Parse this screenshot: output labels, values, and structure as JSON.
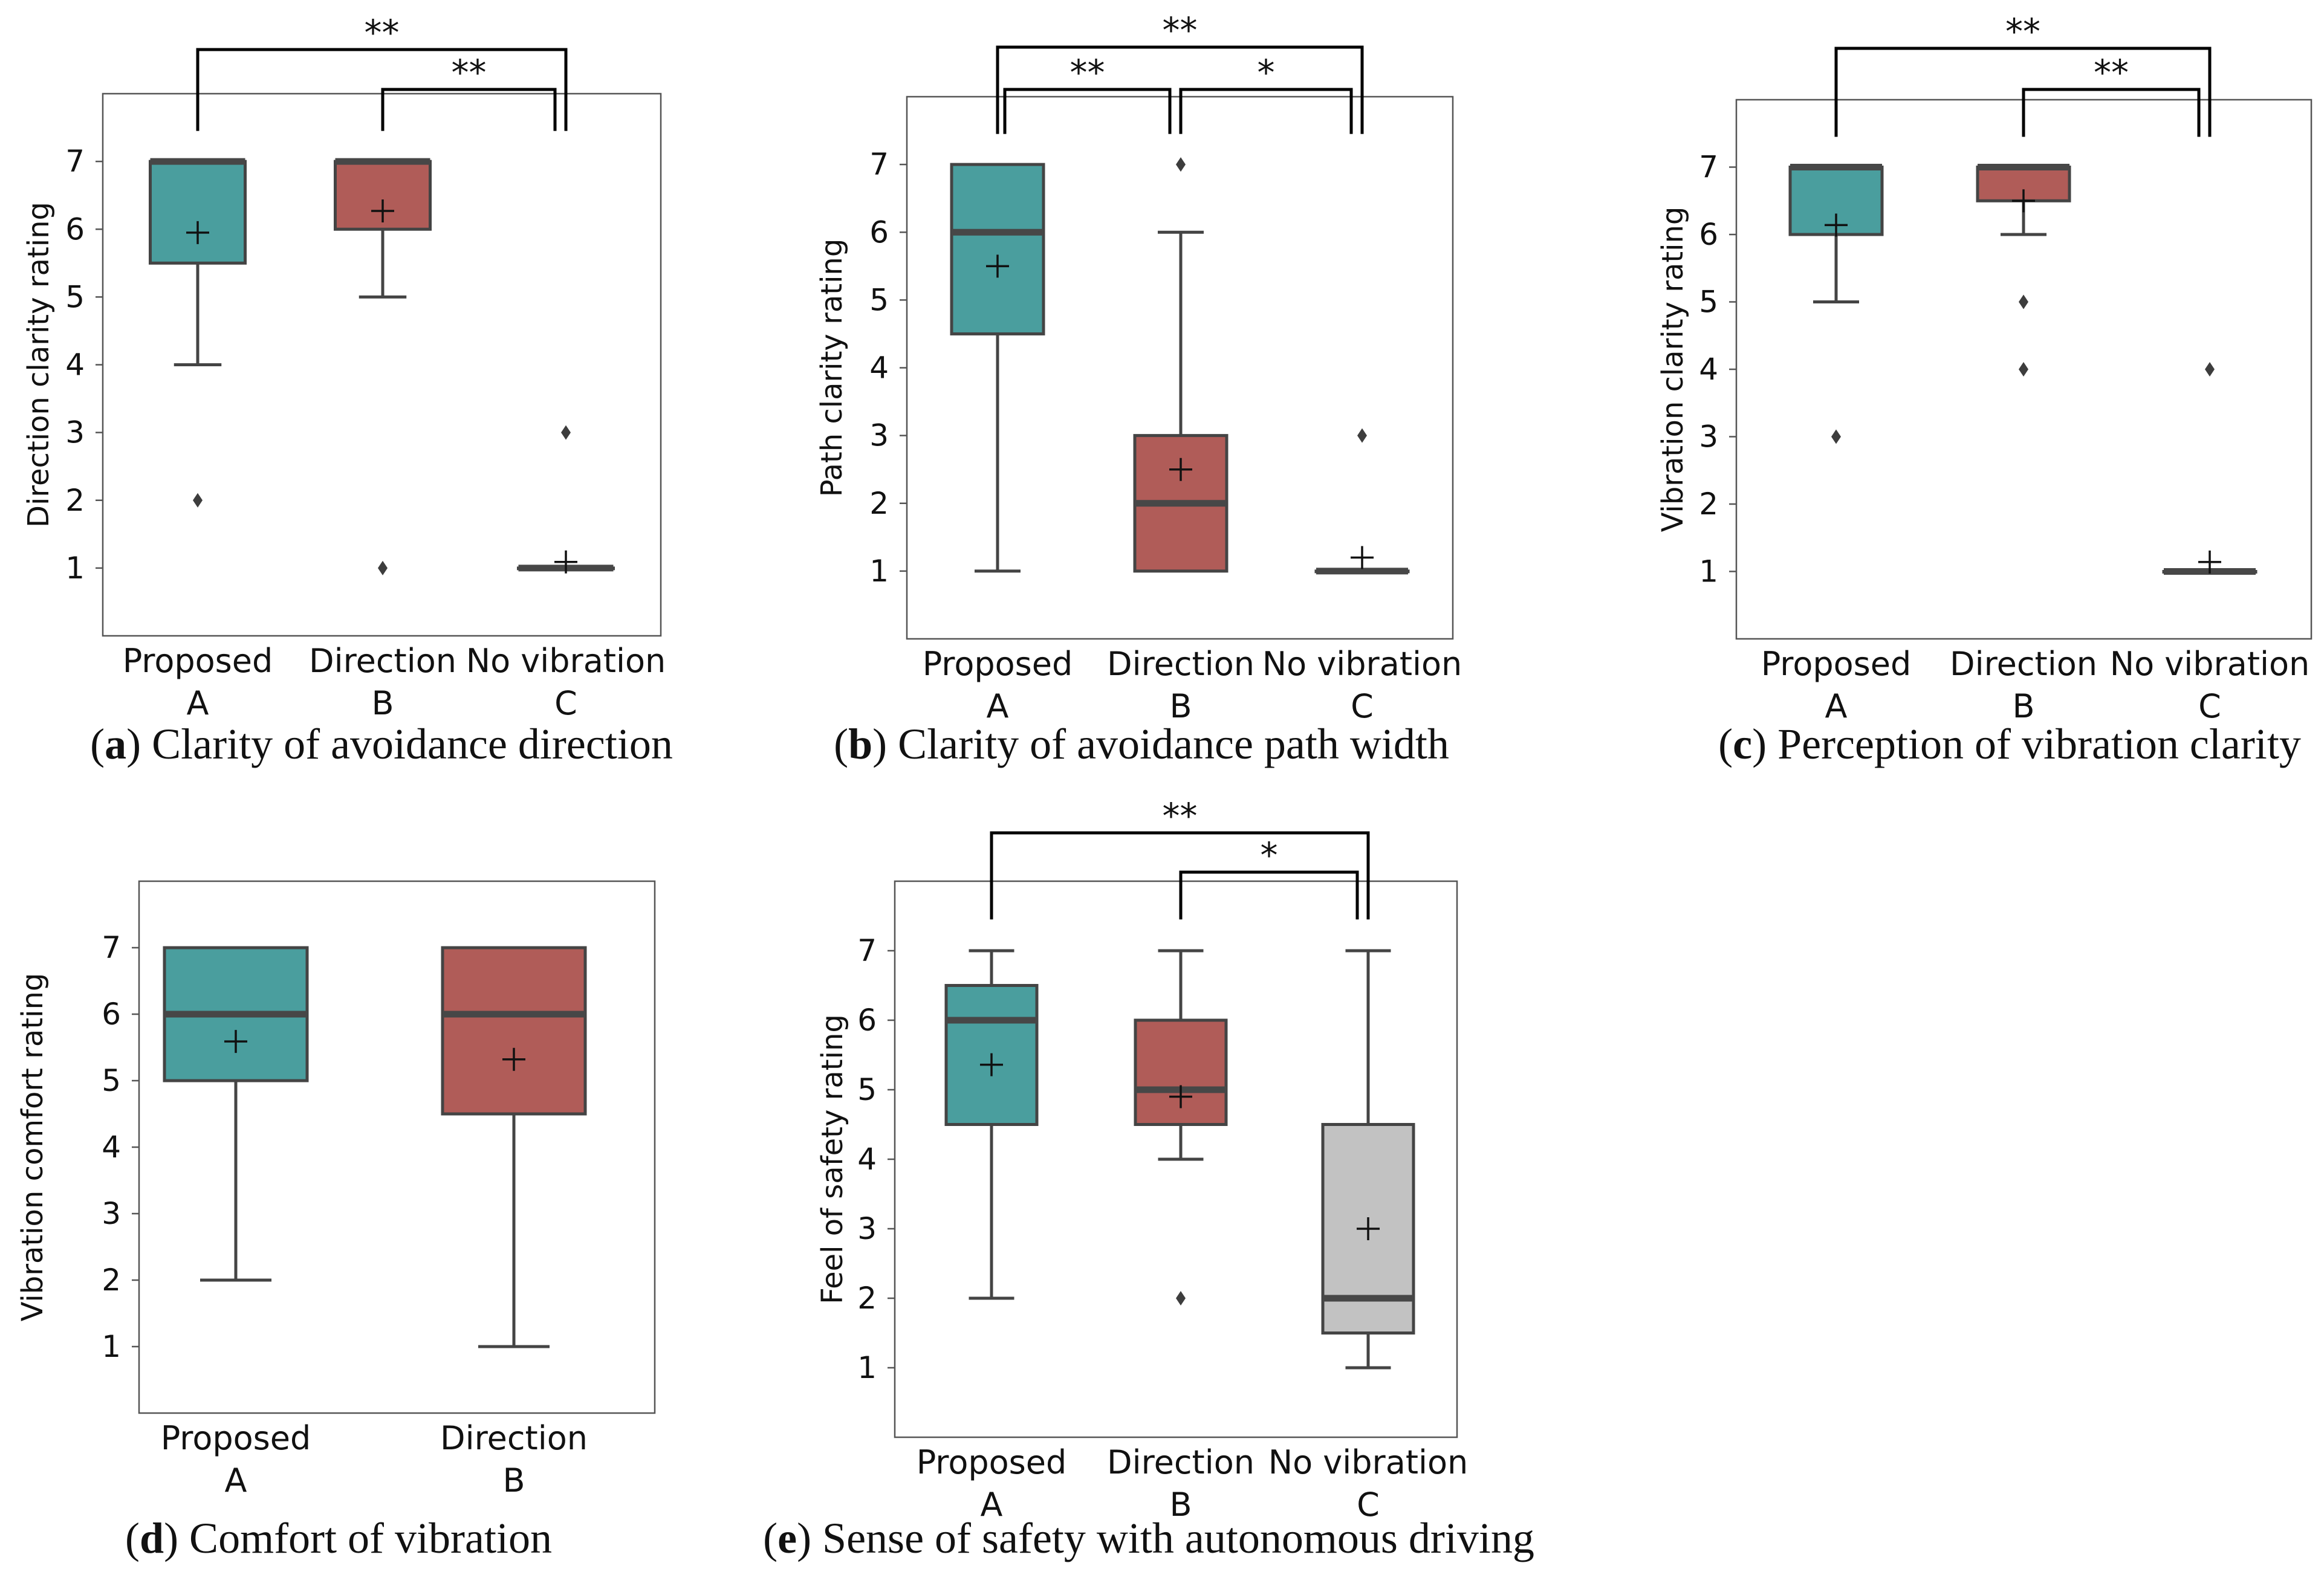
{
  "figure": {
    "colors": {
      "A": "#4a9e9e",
      "B": "#b05c58",
      "C": "#c2c2c2",
      "line": "#444444",
      "median": "#474747",
      "frame": "#555555",
      "text": "#111111",
      "bracket": "#000000"
    },
    "markers": {
      "mean": "+",
      "outlier": "diamond"
    }
  },
  "chart_data": [
    {
      "id": "a",
      "type": "box",
      "caption_letter": "a",
      "caption_open": "(",
      "caption_close": ")",
      "caption_text": "Clarity of avoidance direction",
      "ylabel": "Direction clarity rating",
      "ylim": [
        0,
        8
      ],
      "yticks": [
        "1",
        "2",
        "3",
        "4",
        "5",
        "6",
        "7"
      ],
      "groups": [
        {
          "key": "A",
          "name": "Proposed",
          "letter": "A",
          "q1": 5.5,
          "median": 7,
          "q3": 7,
          "whisker_low": 4,
          "whisker_high": 7,
          "mean": 5.95,
          "outliers": [
            2
          ]
        },
        {
          "key": "B",
          "name": "Direction",
          "letter": "B",
          "q1": 6,
          "median": 7,
          "q3": 7,
          "whisker_low": 5,
          "whisker_high": 7,
          "mean": 6.27,
          "outliers": [
            1
          ]
        },
        {
          "key": "C",
          "name": "No vibration",
          "letter": "C",
          "q1": 1,
          "median": 1,
          "q3": 1,
          "whisker_low": 1,
          "whisker_high": 1,
          "mean": 1.09,
          "outliers": [
            3
          ]
        }
      ],
      "significance": [
        {
          "from": 0,
          "to": 2,
          "label": "**",
          "level": 2
        },
        {
          "from": 1,
          "to": 2,
          "label": "**",
          "level": 1
        }
      ]
    },
    {
      "id": "b",
      "type": "box",
      "caption_letter": "b",
      "caption_open": "(",
      "caption_close": ")",
      "caption_text": "Clarity of avoidance path width",
      "ylabel": "Path clarity rating",
      "ylim": [
        0,
        8
      ],
      "yticks": [
        "1",
        "2",
        "3",
        "4",
        "5",
        "6",
        "7"
      ],
      "groups": [
        {
          "key": "A",
          "name": "Proposed",
          "letter": "A",
          "q1": 4.5,
          "median": 6,
          "q3": 7,
          "whisker_low": 1,
          "whisker_high": 7,
          "mean": 5.5,
          "outliers": []
        },
        {
          "key": "B",
          "name": "Direction",
          "letter": "B",
          "q1": 1,
          "median": 2,
          "q3": 3,
          "whisker_low": 1,
          "whisker_high": 6,
          "mean": 2.5,
          "outliers": [
            7
          ]
        },
        {
          "key": "C",
          "name": "No vibration",
          "letter": "C",
          "q1": 1,
          "median": 1,
          "q3": 1,
          "whisker_low": 1,
          "whisker_high": 1,
          "mean": 1.2,
          "outliers": [
            3
          ]
        }
      ],
      "significance": [
        {
          "from": 0,
          "to": 2,
          "label": "**",
          "level": 2
        },
        {
          "from": 0,
          "to": 1,
          "label": "**",
          "level": 1
        },
        {
          "from": 1,
          "to": 2,
          "label": "*",
          "level": 1
        }
      ]
    },
    {
      "id": "c",
      "type": "box",
      "caption_letter": "c",
      "caption_open": "(",
      "caption_close": ")",
      "caption_text": "Perception of vibration clarity",
      "ylabel": "Vibration clarity rating",
      "ylim": [
        0,
        8
      ],
      "yticks": [
        "1",
        "2",
        "3",
        "4",
        "5",
        "6",
        "7"
      ],
      "groups": [
        {
          "key": "A",
          "name": "Proposed",
          "letter": "A",
          "q1": 6,
          "median": 7,
          "q3": 7,
          "whisker_low": 5,
          "whisker_high": 7,
          "mean": 6.14,
          "outliers": [
            3
          ]
        },
        {
          "key": "B",
          "name": "Direction",
          "letter": "B",
          "q1": 6.5,
          "median": 7,
          "q3": 7,
          "whisker_low": 6,
          "whisker_high": 7,
          "mean": 6.5,
          "outliers": [
            5,
            4
          ]
        },
        {
          "key": "C",
          "name": "No vibration",
          "letter": "C",
          "q1": 1,
          "median": 1,
          "q3": 1,
          "whisker_low": 1,
          "whisker_high": 1,
          "mean": 1.14,
          "outliers": [
            4
          ]
        }
      ],
      "significance": [
        {
          "from": 0,
          "to": 2,
          "label": "**",
          "level": 2
        },
        {
          "from": 1,
          "to": 2,
          "label": "**",
          "level": 1
        }
      ]
    },
    {
      "id": "d",
      "type": "box",
      "caption_letter": "d",
      "caption_open": "(",
      "caption_close": ")",
      "caption_text": "Comfort of vibration",
      "ylabel": "Vibration comfort rating",
      "ylim": [
        0,
        8
      ],
      "yticks": [
        "1",
        "2",
        "3",
        "4",
        "5",
        "6",
        "7"
      ],
      "groups": [
        {
          "key": "A",
          "name": "Proposed",
          "letter": "A",
          "q1": 5,
          "median": 6,
          "q3": 7,
          "whisker_low": 2,
          "whisker_high": 7,
          "mean": 5.59,
          "outliers": []
        },
        {
          "key": "B",
          "name": "Direction",
          "letter": "B",
          "q1": 4.5,
          "median": 6,
          "q3": 7,
          "whisker_low": 1,
          "whisker_high": 7,
          "mean": 5.32,
          "outliers": []
        }
      ],
      "significance": []
    },
    {
      "id": "e",
      "type": "box",
      "caption_letter": "e",
      "caption_open": "(",
      "caption_close": ")",
      "caption_text": "Sense of safety with autonomous driving",
      "ylabel": "Feel of safety rating",
      "ylim": [
        0,
        8
      ],
      "yticks": [
        "1",
        "2",
        "3",
        "4",
        "5",
        "6",
        "7"
      ],
      "groups": [
        {
          "key": "A",
          "name": "Proposed",
          "letter": "A",
          "q1": 4.5,
          "median": 6,
          "q3": 6.5,
          "whisker_low": 2,
          "whisker_high": 7,
          "mean": 5.36,
          "outliers": []
        },
        {
          "key": "B",
          "name": "Direction",
          "letter": "B",
          "q1": 4.5,
          "median": 5,
          "q3": 6,
          "whisker_low": 4,
          "whisker_high": 7,
          "mean": 4.9,
          "outliers": [
            2
          ]
        },
        {
          "key": "C",
          "name": "No vibration",
          "letter": "C",
          "q1": 1.5,
          "median": 2,
          "q3": 4.5,
          "whisker_low": 1,
          "whisker_high": 7,
          "mean": 3.0,
          "outliers": []
        }
      ],
      "significance": [
        {
          "from": 0,
          "to": 2,
          "label": "**",
          "level": 2
        },
        {
          "from": 1,
          "to": 2,
          "label": "*",
          "level": 1
        }
      ]
    }
  ]
}
